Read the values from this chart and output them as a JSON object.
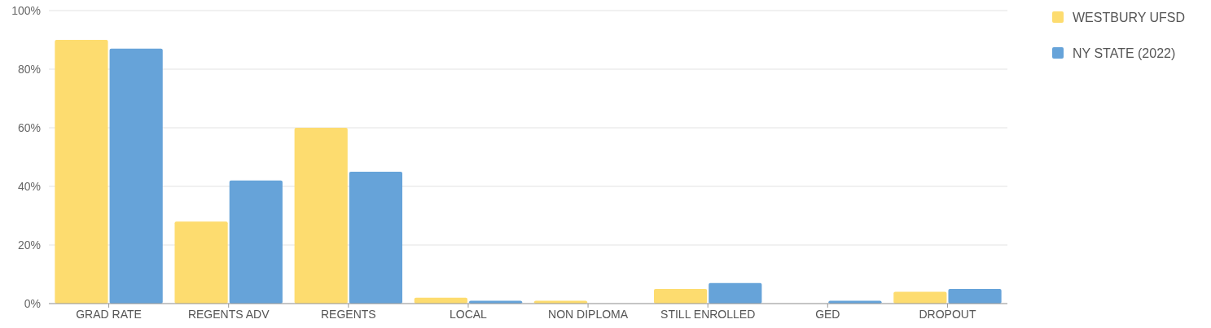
{
  "chart_data": {
    "type": "bar",
    "categories": [
      "GRAD RATE",
      "REGENTS ADV",
      "REGENTS",
      "LOCAL",
      "NON DIPLOMA",
      "STILL ENROLLED",
      "GED",
      "DROPOUT"
    ],
    "series": [
      {
        "name": "WESTBURY UFSD",
        "color": "#fddc6f",
        "values": [
          90,
          28,
          60,
          2,
          1,
          5,
          0,
          4
        ]
      },
      {
        "name": "NY STATE (2022)",
        "color": "#66a3d9",
        "values": [
          87,
          42,
          45,
          1,
          0,
          7,
          1,
          5
        ]
      }
    ],
    "ylim": [
      0,
      100
    ],
    "yticks": [
      {
        "value": 0,
        "label": "0%"
      },
      {
        "value": 20,
        "label": "20%"
      },
      {
        "value": 40,
        "label": "40%"
      },
      {
        "value": 60,
        "label": "60%"
      },
      {
        "value": 80,
        "label": "80%"
      },
      {
        "value": 100,
        "label": "100%"
      }
    ],
    "grid": "y",
    "legend": "top right"
  }
}
